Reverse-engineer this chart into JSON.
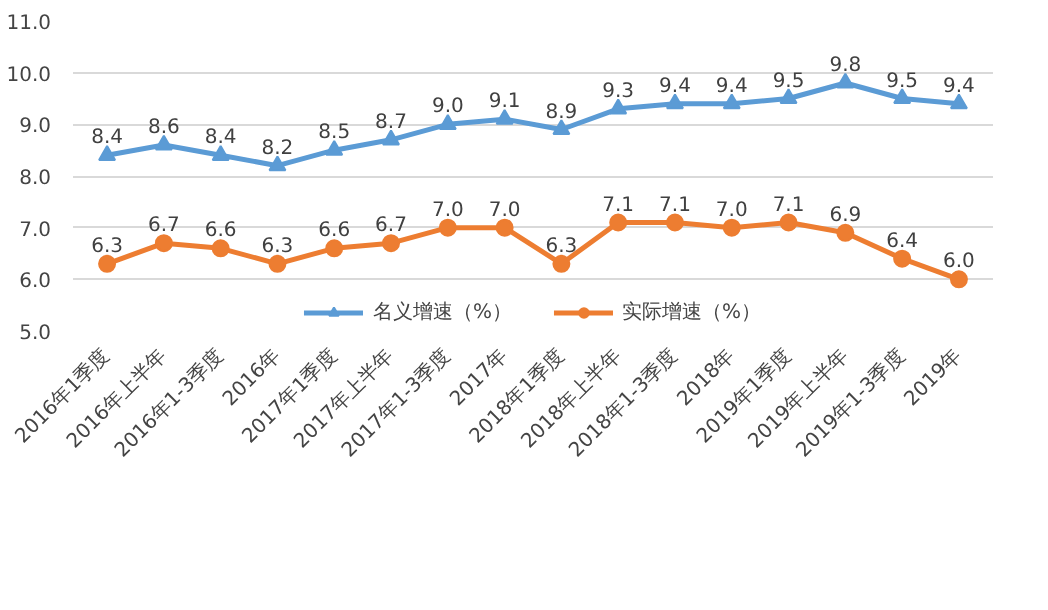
{
  "chart_data": {
    "type": "line",
    "categories": [
      "2016年1季度",
      "2016年上半年",
      "2016年1-3季度",
      "2016年",
      "2017年1季度",
      "2017年上半年",
      "2017年1-3季度",
      "2017年",
      "2018年1季度",
      "2018年上半年",
      "2018年1-3季度",
      "2018年",
      "2019年1季度",
      "2019年上半年",
      "2019年1-3季度",
      "2019年"
    ],
    "series": [
      {
        "name": "名义增速（%）",
        "color": "#5b9bd5",
        "marker": "triangle",
        "values": [
          8.4,
          8.6,
          8.4,
          8.2,
          8.5,
          8.7,
          9.0,
          9.1,
          8.9,
          9.3,
          9.4,
          9.4,
          9.5,
          9.8,
          9.5,
          9.4
        ],
        "value_labels": [
          "8.4",
          "8.6",
          "8.4",
          "8.2",
          "8.5",
          "8.7",
          "9.0",
          "9.1",
          "8.9",
          "9.3",
          "9.4",
          "9.4",
          "9.5",
          "9.8",
          "9.5",
          "9.4"
        ]
      },
      {
        "name": "实际增速（%）",
        "color": "#ed7d31",
        "marker": "circle",
        "values": [
          6.3,
          6.7,
          6.6,
          6.3,
          6.6,
          6.7,
          7.0,
          7.0,
          6.3,
          7.1,
          7.1,
          7.0,
          7.1,
          6.9,
          6.4,
          6.0
        ],
        "value_labels": [
          "6.3",
          "6.7",
          "6.6",
          "6.3",
          "6.6",
          "6.7",
          "7.0",
          "7.0",
          "6.3",
          "7.1",
          "7.1",
          "7.0",
          "7.1",
          "6.9",
          "6.4",
          "6.0"
        ]
      }
    ],
    "ylim": [
      5,
      11
    ],
    "yticks": [
      {
        "value": 5,
        "label": "5.0"
      },
      {
        "value": 6,
        "label": "6.0"
      },
      {
        "value": 7,
        "label": "7.0"
      },
      {
        "value": 8,
        "label": "8.0"
      },
      {
        "value": 9,
        "label": "9.0"
      },
      {
        "value": 10,
        "label": "10.0"
      },
      {
        "value": 11,
        "label": "11.0"
      }
    ],
    "grid": "y",
    "legend": "bottom",
    "line_style": "solid"
  }
}
